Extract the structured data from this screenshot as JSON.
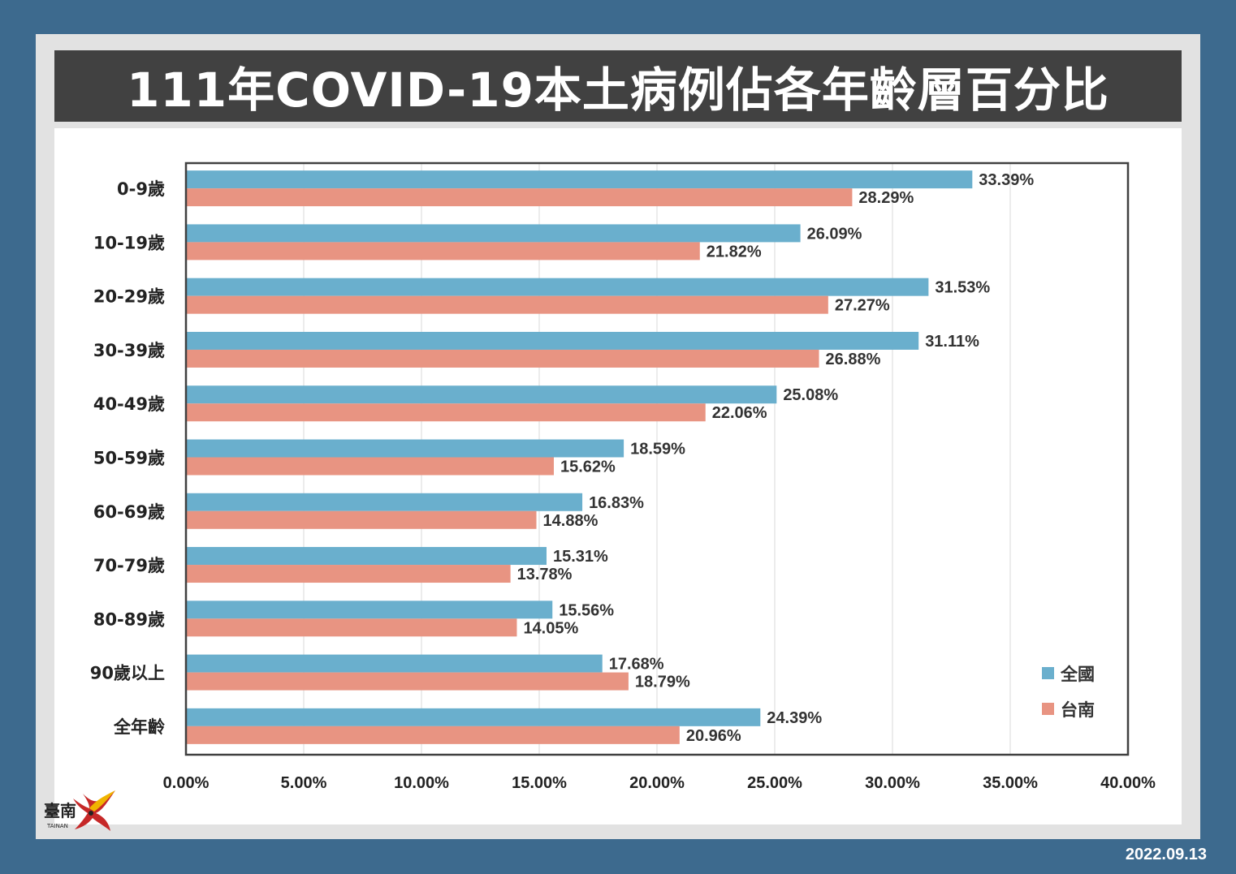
{
  "title": "111年COVID-19本土病例佔各年齡層百分比",
  "date": "2022.09.13",
  "logo": {
    "text": "臺南",
    "subtext": "TAINAN"
  },
  "colors": {
    "national": "#6aafcd",
    "tainan": "#e89482",
    "background": "#3d6a8e",
    "title_bar": "#414141"
  },
  "chart_data": {
    "type": "bar",
    "orientation": "horizontal",
    "categories": [
      "0-9歲",
      "10-19歲",
      "20-29歲",
      "30-39歲",
      "40-49歲",
      "50-59歲",
      "60-69歲",
      "70-79歲",
      "80-89歲",
      "90歲以上",
      "全年齡"
    ],
    "series": [
      {
        "name": "全國",
        "values": [
          33.39,
          26.09,
          31.53,
          31.11,
          25.08,
          18.59,
          16.83,
          15.31,
          15.56,
          17.68,
          24.39
        ]
      },
      {
        "name": "台南",
        "values": [
          28.29,
          21.82,
          27.27,
          26.88,
          22.06,
          15.62,
          14.88,
          13.78,
          14.05,
          18.79,
          20.96
        ]
      }
    ],
    "xlim": [
      0,
      40
    ],
    "x_ticks": [
      "0.00%",
      "5.00%",
      "10.00%",
      "15.00%",
      "20.00%",
      "25.00%",
      "30.00%",
      "35.00%",
      "40.00%"
    ],
    "data_labels": [
      [
        "33.39%",
        "26.09%",
        "31.53%",
        "31.11%",
        "25.08%",
        "18.59%",
        "16.83%",
        "15.31%",
        "15.56%",
        "17.68%",
        "24.39%"
      ],
      [
        "28.29%",
        "21.82%",
        "27.27%",
        "26.88%",
        "22.06%",
        "15.62%",
        "14.88%",
        "13.78%",
        "14.05%",
        "18.79%",
        "20.96%"
      ]
    ],
    "grid": true,
    "legend": "bottom-right"
  }
}
